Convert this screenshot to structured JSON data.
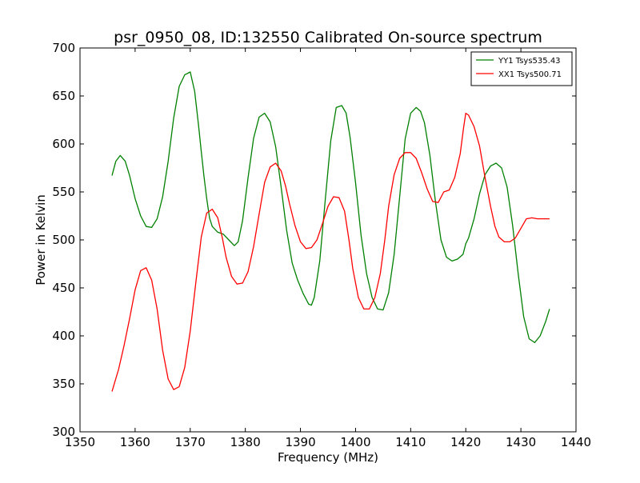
{
  "chart_data": {
    "type": "line",
    "title": "psr_0950_08, ID:132550 Calibrated On-source spectrum",
    "xlabel": "Frequency (MHz)",
    "ylabel": "Power in Kelvin",
    "xlim": [
      1350,
      1440
    ],
    "ylim": [
      300,
      700
    ],
    "xticks": [
      1350,
      1360,
      1370,
      1380,
      1390,
      1400,
      1410,
      1420,
      1430,
      1440
    ],
    "yticks": [
      300,
      350,
      400,
      450,
      500,
      550,
      600,
      650,
      700
    ],
    "grid": false,
    "legend_position": "top-right",
    "series": [
      {
        "name": "YY1 Tsys535.43",
        "color": "#008000",
        "x": [
          1355.8,
          1356.5,
          1357.3,
          1358.2,
          1359.0,
          1360.0,
          1361.0,
          1362.0,
          1363.0,
          1364.0,
          1365.0,
          1366.0,
          1367.0,
          1368.0,
          1369.0,
          1370.0,
          1370.8,
          1371.5,
          1372.0,
          1372.5,
          1373.0,
          1373.5,
          1374.0,
          1375.0,
          1376.0,
          1377.0,
          1378.0,
          1378.7,
          1379.5,
          1380.5,
          1381.5,
          1382.5,
          1383.5,
          1384.5,
          1385.5,
          1386.5,
          1387.5,
          1388.5,
          1389.5,
          1390.5,
          1391.5,
          1392.0,
          1392.5,
          1393.5,
          1394.5,
          1395.5,
          1396.5,
          1397.5,
          1398.3,
          1399.0,
          1400.0,
          1401.0,
          1402.0,
          1403.0,
          1404.0,
          1405.0,
          1406.0,
          1407.0,
          1408.0,
          1409.0,
          1410.0,
          1411.0,
          1411.8,
          1412.5,
          1413.5,
          1414.5,
          1415.5,
          1416.5,
          1417.5,
          1418.5,
          1419.5,
          1420.0,
          1420.5,
          1421.5,
          1422.5,
          1423.5,
          1424.5,
          1425.5,
          1426.5,
          1427.5,
          1428.5,
          1429.5,
          1430.5,
          1431.5,
          1432.5,
          1433.5,
          1434.5,
          1435.2
        ],
        "values": [
          567,
          582,
          588,
          582,
          567,
          543,
          525,
          514,
          513,
          522,
          545,
          582,
          627,
          660,
          672,
          675,
          655,
          620,
          592,
          566,
          543,
          523,
          514,
          508,
          506,
          500,
          494,
          498,
          520,
          565,
          606,
          628,
          632,
          623,
          597,
          555,
          510,
          476,
          458,
          444,
          433,
          432,
          440,
          478,
          542,
          603,
          638,
          640,
          632,
          607,
          560,
          505,
          465,
          440,
          428,
          427,
          445,
          485,
          545,
          605,
          632,
          638,
          634,
          622,
          588,
          540,
          500,
          482,
          478,
          480,
          485,
          496,
          502,
          522,
          548,
          568,
          577,
          580,
          575,
          555,
          515,
          465,
          420,
          397,
          393,
          400,
          415,
          428
        ]
      },
      {
        "name": "XX1 Tsys500.71",
        "color": "#ff0000",
        "x": [
          1355.8,
          1357.0,
          1358.0,
          1359.0,
          1360.0,
          1361.0,
          1362.0,
          1363.0,
          1364.0,
          1365.0,
          1366.0,
          1367.0,
          1368.0,
          1369.0,
          1370.0,
          1371.0,
          1372.0,
          1373.0,
          1374.0,
          1375.0,
          1375.8,
          1376.5,
          1377.5,
          1378.5,
          1379.5,
          1380.5,
          1381.5,
          1382.5,
          1383.5,
          1384.5,
          1385.5,
          1386.5,
          1387.3,
          1388.0,
          1389.0,
          1390.0,
          1391.0,
          1392.0,
          1393.0,
          1394.0,
          1395.0,
          1396.0,
          1397.0,
          1398.0,
          1398.8,
          1399.5,
          1400.5,
          1401.5,
          1402.5,
          1403.5,
          1404.5,
          1405.3,
          1406.0,
          1407.0,
          1408.0,
          1409.0,
          1410.0,
          1411.0,
          1412.0,
          1413.0,
          1414.0,
          1415.0,
          1416.0,
          1417.0,
          1418.0,
          1419.0,
          1419.6,
          1420.0,
          1420.5,
          1421.5,
          1422.5,
          1423.5,
          1424.5,
          1425.3,
          1426.0,
          1427.0,
          1428.0,
          1429.0,
          1430.0,
          1431.0,
          1432.0,
          1433.0,
          1434.0,
          1434.8,
          1435.2
        ],
        "values": [
          342,
          365,
          390,
          418,
          448,
          468,
          471,
          458,
          428,
          385,
          355,
          344,
          347,
          367,
          405,
          455,
          503,
          528,
          532,
          523,
          503,
          482,
          462,
          454,
          455,
          467,
          493,
          527,
          560,
          576,
          580,
          572,
          556,
          538,
          515,
          498,
          491,
          492,
          500,
          517,
          535,
          545,
          544,
          530,
          500,
          470,
          440,
          428,
          428,
          440,
          465,
          500,
          535,
          568,
          585,
          591,
          591,
          585,
          570,
          553,
          540,
          539,
          550,
          552,
          565,
          590,
          617,
          632,
          630,
          618,
          598,
          565,
          535,
          514,
          503,
          498,
          498,
          502,
          512,
          522,
          523,
          522,
          522,
          522,
          522
        ]
      }
    ]
  }
}
